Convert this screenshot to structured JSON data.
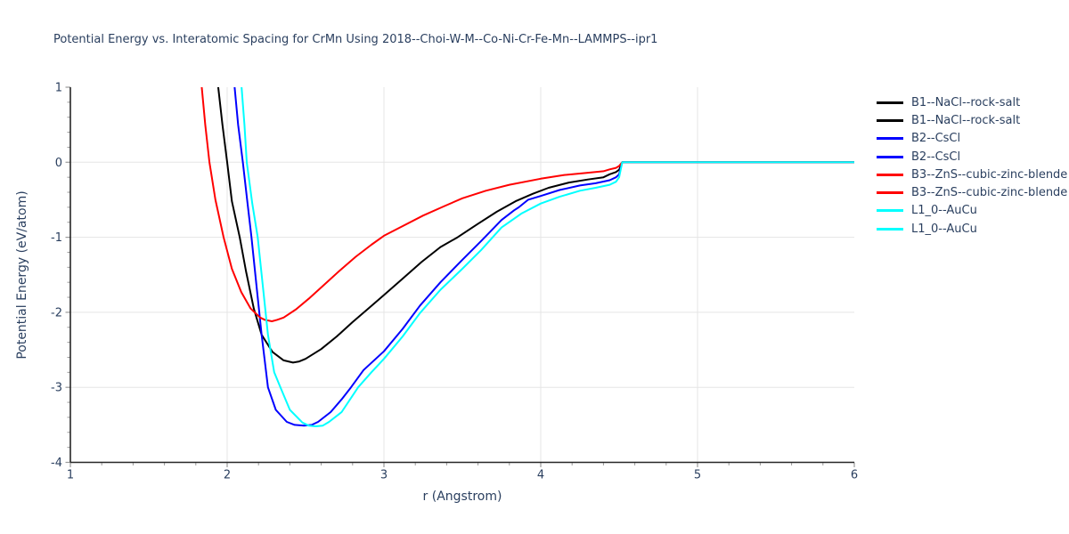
{
  "figure": {
    "background": "#ffffff",
    "text_color": "#2a3f5f",
    "grid_color": "#e5e5e5",
    "axis_line_color": "#262626",
    "tick_color": "#9a9a9a"
  },
  "chart_data": {
    "type": "line",
    "title": "Potential Energy vs. Interatomic Spacing for CrMn Using 2018--Choi-W-M--Co-Ni-Cr-Fe-Mn--LAMMPS--ipr1",
    "xlabel": "r (Angstrom)",
    "ylabel": "Potential Energy (eV/atom)",
    "xlim": [
      1,
      6
    ],
    "ylim": [
      -4,
      1
    ],
    "x_ticks": [
      1,
      2,
      3,
      4,
      5,
      6
    ],
    "y_ticks": [
      1,
      0,
      -1,
      -2,
      -3,
      -4
    ],
    "minor_tick_step": 0.2,
    "grid": true,
    "legend_position": "right-outside",
    "legend": [
      {
        "label": "B1--NaCl--rock-salt",
        "color": "#000000",
        "curve": "B1"
      },
      {
        "label": "B1--NaCl--rock-salt",
        "color": "#000000",
        "curve": "B1"
      },
      {
        "label": "B2--CsCl",
        "color": "#0000ff",
        "curve": "B2"
      },
      {
        "label": "B2--CsCl",
        "color": "#0000ff",
        "curve": "B2"
      },
      {
        "label": "B3--ZnS--cubic-zinc-blende",
        "color": "#ff0000",
        "curve": "B3"
      },
      {
        "label": "B3--ZnS--cubic-zinc-blende",
        "color": "#ff0000",
        "curve": "B3"
      },
      {
        "label": "L1_0--AuCu",
        "color": "#00ffff",
        "curve": "L1_0"
      },
      {
        "label": "L1_0--AuCu",
        "color": "#00ffff",
        "curve": "L1_0"
      }
    ],
    "curves": [
      {
        "id": "B1",
        "name": "B1--NaCl--rock-salt",
        "color": "#000000",
        "points": [
          [
            1.94,
            1.06
          ],
          [
            1.97,
            0.5
          ],
          [
            2.0,
            0.0
          ],
          [
            2.03,
            -0.52
          ],
          [
            2.08,
            -1.0
          ],
          [
            2.12,
            -1.45
          ],
          [
            2.17,
            -1.95
          ],
          [
            2.22,
            -2.3
          ],
          [
            2.29,
            -2.53
          ],
          [
            2.36,
            -2.64
          ],
          [
            2.42,
            -2.67
          ],
          [
            2.46,
            -2.655
          ],
          [
            2.5,
            -2.62
          ],
          [
            2.6,
            -2.49
          ],
          [
            2.7,
            -2.32
          ],
          [
            2.8,
            -2.13
          ],
          [
            2.9,
            -1.95
          ],
          [
            3.0,
            -1.77
          ],
          [
            3.12,
            -1.55
          ],
          [
            3.24,
            -1.33
          ],
          [
            3.36,
            -1.13
          ],
          [
            3.47,
            -1.0
          ],
          [
            3.6,
            -0.82
          ],
          [
            3.72,
            -0.66
          ],
          [
            3.84,
            -0.52
          ],
          [
            3.95,
            -0.42
          ],
          [
            4.05,
            -0.34
          ],
          [
            4.18,
            -0.27
          ],
          [
            4.3,
            -0.23
          ],
          [
            4.4,
            -0.2
          ],
          [
            4.44,
            -0.16
          ],
          [
            4.48,
            -0.13
          ],
          [
            4.5,
            -0.1
          ],
          [
            4.52,
            0.0
          ],
          [
            6.0,
            0.0
          ]
        ]
      },
      {
        "id": "B2",
        "name": "B2--CsCl",
        "color": "#0000ff",
        "points": [
          [
            2.045,
            1.06
          ],
          [
            2.07,
            0.5
          ],
          [
            2.1,
            0.0
          ],
          [
            2.13,
            -0.55
          ],
          [
            2.155,
            -1.0
          ],
          [
            2.19,
            -1.7
          ],
          [
            2.22,
            -2.3
          ],
          [
            2.26,
            -3.0
          ],
          [
            2.31,
            -3.3
          ],
          [
            2.38,
            -3.46
          ],
          [
            2.43,
            -3.5
          ],
          [
            2.49,
            -3.51
          ],
          [
            2.54,
            -3.5
          ],
          [
            2.58,
            -3.46
          ],
          [
            2.66,
            -3.33
          ],
          [
            2.73,
            -3.16
          ],
          [
            2.79,
            -3.0
          ],
          [
            2.87,
            -2.77
          ],
          [
            3.0,
            -2.52
          ],
          [
            3.12,
            -2.22
          ],
          [
            3.23,
            -1.91
          ],
          [
            3.36,
            -1.6
          ],
          [
            3.5,
            -1.3
          ],
          [
            3.62,
            -1.05
          ],
          [
            3.75,
            -0.77
          ],
          [
            3.83,
            -0.64
          ],
          [
            3.86,
            -0.6
          ],
          [
            3.92,
            -0.5
          ],
          [
            4.0,
            -0.45
          ],
          [
            4.12,
            -0.37
          ],
          [
            4.25,
            -0.31
          ],
          [
            4.35,
            -0.28
          ],
          [
            4.44,
            -0.24
          ],
          [
            4.48,
            -0.2
          ],
          [
            4.5,
            -0.16
          ],
          [
            4.52,
            0.0
          ],
          [
            6.0,
            0.0
          ]
        ]
      },
      {
        "id": "B3",
        "name": "B3--ZnS--cubic-zinc-blende",
        "color": "#ff0000",
        "points": [
          [
            1.835,
            1.06
          ],
          [
            1.86,
            0.5
          ],
          [
            1.887,
            0.0
          ],
          [
            1.925,
            -0.5
          ],
          [
            1.977,
            -1.0
          ],
          [
            2.03,
            -1.42
          ],
          [
            2.09,
            -1.73
          ],
          [
            2.15,
            -1.95
          ],
          [
            2.21,
            -2.07
          ],
          [
            2.24,
            -2.1
          ],
          [
            2.285,
            -2.12
          ],
          [
            2.32,
            -2.1
          ],
          [
            2.36,
            -2.07
          ],
          [
            2.44,
            -1.96
          ],
          [
            2.52,
            -1.82
          ],
          [
            2.62,
            -1.63
          ],
          [
            2.72,
            -1.44
          ],
          [
            2.82,
            -1.26
          ],
          [
            2.92,
            -1.1
          ],
          [
            3.0,
            -0.98
          ],
          [
            3.12,
            -0.85
          ],
          [
            3.25,
            -0.71
          ],
          [
            3.38,
            -0.59
          ],
          [
            3.5,
            -0.48
          ],
          [
            3.65,
            -0.38
          ],
          [
            3.8,
            -0.3
          ],
          [
            4.0,
            -0.22
          ],
          [
            4.15,
            -0.17
          ],
          [
            4.3,
            -0.14
          ],
          [
            4.4,
            -0.12
          ],
          [
            4.44,
            -0.095
          ],
          [
            4.48,
            -0.075
          ],
          [
            4.5,
            -0.05
          ],
          [
            4.52,
            0.0
          ],
          [
            6.0,
            0.0
          ]
        ]
      },
      {
        "id": "L1_0",
        "name": "L1_0--AuCu",
        "color": "#00ffff",
        "points": [
          [
            2.09,
            1.06
          ],
          [
            2.11,
            0.5
          ],
          [
            2.125,
            0.0
          ],
          [
            2.16,
            -0.55
          ],
          [
            2.195,
            -1.0
          ],
          [
            2.23,
            -1.7
          ],
          [
            2.26,
            -2.3
          ],
          [
            2.3,
            -2.8
          ],
          [
            2.34,
            -3.0
          ],
          [
            2.4,
            -3.3
          ],
          [
            2.48,
            -3.47
          ],
          [
            2.52,
            -3.51
          ],
          [
            2.565,
            -3.52
          ],
          [
            2.61,
            -3.51
          ],
          [
            2.65,
            -3.46
          ],
          [
            2.73,
            -3.33
          ],
          [
            2.835,
            -3.0
          ],
          [
            2.92,
            -2.8
          ],
          [
            3.0,
            -2.62
          ],
          [
            3.12,
            -2.32
          ],
          [
            3.23,
            -2.01
          ],
          [
            3.36,
            -1.7
          ],
          [
            3.5,
            -1.42
          ],
          [
            3.62,
            -1.17
          ],
          [
            3.75,
            -0.87
          ],
          [
            3.88,
            -0.68
          ],
          [
            4.0,
            -0.55
          ],
          [
            4.12,
            -0.46
          ],
          [
            4.25,
            -0.38
          ],
          [
            4.35,
            -0.34
          ],
          [
            4.44,
            -0.3
          ],
          [
            4.48,
            -0.26
          ],
          [
            4.5,
            -0.2
          ],
          [
            4.52,
            0.0
          ],
          [
            6.0,
            0.0
          ]
        ]
      }
    ]
  }
}
